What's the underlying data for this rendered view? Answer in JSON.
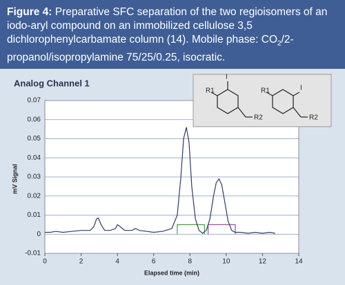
{
  "caption": {
    "label": "Figure 4:",
    "text_before": " Preparative SFC separation of the two regioisomers of an iodo-aryl compound on an immobilized cellulose 3,5 dichlorophenylcarbamate column (14). Mobile phase: CO",
    "subscript": "2",
    "text_after": "/2-propanol/isopropylamine 75/25/0.25, isocratic."
  },
  "inset": {
    "structures": [
      {
        "labels": [
          "R1",
          "I",
          "R2"
        ]
      },
      {
        "labels": [
          "R1",
          "I",
          "R2"
        ]
      }
    ]
  },
  "chart_data": {
    "type": "line",
    "title": "Analog Channel 1",
    "xlabel": "Elapsed time (min)",
    "ylabel": "mV Signal",
    "x": [
      0,
      0.3,
      0.6,
      1,
      1.5,
      2,
      2.5,
      2.7,
      2.85,
      2.95,
      3.1,
      3.3,
      3.6,
      3.9,
      4.0,
      4.15,
      4.4,
      4.8,
      5.0,
      5.2,
      5.6,
      6,
      6.5,
      7,
      7.3,
      7.5,
      7.65,
      7.8,
      7.95,
      8.1,
      8.3,
      8.5,
      8.7,
      8.9,
      9.1,
      9.3,
      9.45,
      9.6,
      9.75,
      9.9,
      10.1,
      10.3,
      10.5,
      10.8,
      11.2,
      11.6,
      12,
      12.4,
      12.7
    ],
    "series": [
      {
        "color": "#2b3a67",
        "values": [
          0.001,
          0.001,
          0.0015,
          0.001,
          0.0015,
          0.002,
          0.002,
          0.004,
          0.008,
          0.0085,
          0.005,
          0.002,
          0.002,
          0.003,
          0.005,
          0.004,
          0.002,
          0.002,
          0.003,
          0.002,
          0.0015,
          0.001,
          0.0015,
          0.003,
          0.01,
          0.03,
          0.05,
          0.056,
          0.048,
          0.025,
          0.008,
          0.002,
          0.0005,
          0.002,
          0.008,
          0.02,
          0.027,
          0.029,
          0.026,
          0.018,
          0.007,
          0.002,
          0.001,
          0.001,
          0.0005,
          0.001,
          0.0005,
          0.001,
          0.0005
        ]
      }
    ],
    "regions": [
      {
        "x": [
          7.3,
          8.8
        ],
        "y": 0.005,
        "color": "#3aaa35"
      },
      {
        "x": [
          9.0,
          10.5
        ],
        "y": 0.005,
        "color": "#a347a8"
      }
    ],
    "xlim": [
      0,
      14
    ],
    "xticks": [
      0,
      2,
      4,
      6,
      8,
      10,
      12,
      14
    ],
    "ylim": [
      -0.01,
      0.07
    ],
    "yticks": [
      -0.01,
      0,
      0.01,
      0.02,
      0.03,
      0.04,
      0.05,
      0.06,
      0.07
    ],
    "grid": true
  }
}
